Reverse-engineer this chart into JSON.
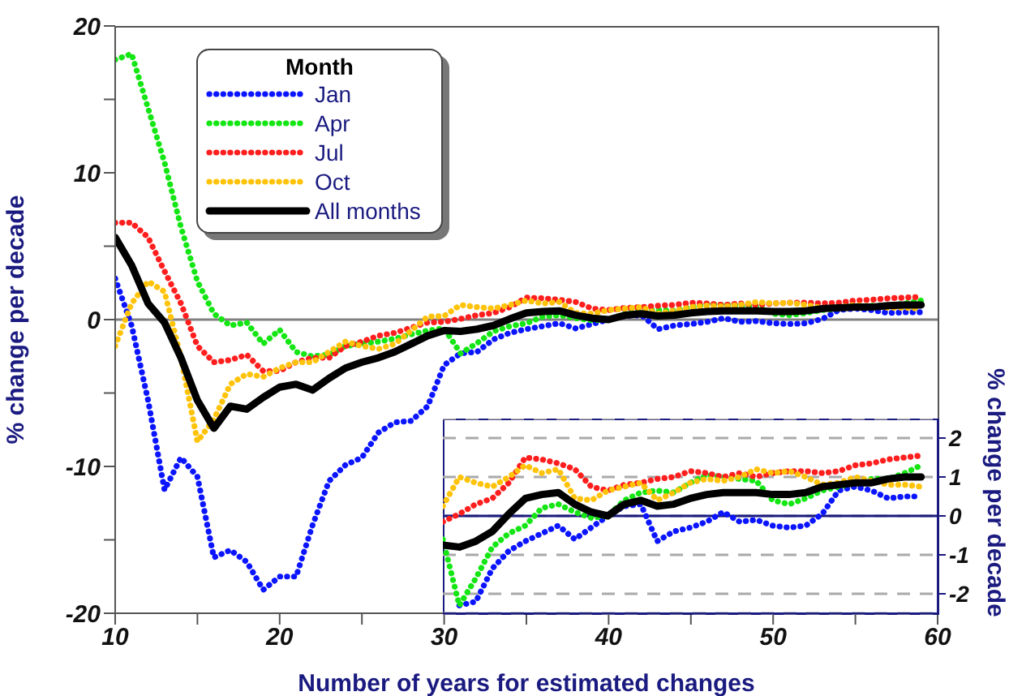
{
  "chart_data": [
    {
      "type": "line",
      "xlabel": "Number of years for estimated changes",
      "ylabel": "% change per decade",
      "legend": "top left",
      "legend_title": "Month",
      "grid": false,
      "xlim": [
        10,
        60
      ],
      "ylim": [
        -20,
        20
      ],
      "xticks": [
        10,
        {
          "value": 15,
          "label": null
        },
        20,
        {
          "value": 25,
          "label": null
        },
        30,
        {
          "value": 35,
          "label": null
        },
        40,
        {
          "value": 45,
          "label": null
        },
        50,
        {
          "value": 55,
          "label": null
        },
        60
      ],
      "yticks": [
        -20,
        {
          "value": -15,
          "label": null
        },
        -10,
        {
          "value": -5,
          "label": null
        },
        0,
        {
          "value": 5,
          "label": null
        },
        10,
        {
          "value": 15,
          "label": null
        },
        20
      ],
      "ref_lines": [
        {
          "axis": "y",
          "value": 0,
          "label": null,
          "color": "#808080",
          "line_style": "solid"
        }
      ],
      "x": [
        10,
        11,
        12,
        13,
        14,
        15,
        16,
        17,
        18,
        19,
        20,
        21,
        22,
        23,
        24,
        25,
        26,
        27,
        28,
        29,
        30,
        31,
        32,
        33,
        34,
        35,
        36,
        37,
        38,
        39,
        40,
        41,
        42,
        43,
        44,
        45,
        46,
        47,
        48,
        49,
        50,
        51,
        52,
        53,
        54,
        55,
        56,
        57,
        58,
        59
      ],
      "series": [
        {
          "name": "Jan",
          "color": "#0a14ff",
          "line_style": "dotted",
          "values": [
            2.8,
            -0.4,
            -5.5,
            -11.6,
            -9.4,
            -10.7,
            -16.2,
            -15.7,
            -16.5,
            -18.4,
            -17.5,
            -17.5,
            -14,
            -11,
            -9.9,
            -9.4,
            -7.7,
            -7,
            -6.9,
            -5.9,
            -3.1,
            -2.3,
            -2.2,
            -1.35,
            -0.9,
            -0.65,
            -0.45,
            -0.25,
            -0.6,
            -0.3,
            0,
            0.25,
            0.3,
            -0.65,
            -0.4,
            -0.3,
            -0.15,
            0.1,
            -0.15,
            -0.1,
            -0.25,
            -0.3,
            -0.25,
            0.05,
            0.65,
            0.75,
            0.65,
            0.45,
            0.5,
            0.5
          ]
        },
        {
          "name": "Apr",
          "color": "#14e614",
          "line_style": "dotted",
          "values": [
            17.7,
            18.1,
            14.4,
            10.7,
            6.3,
            2.6,
            0.4,
            -0.4,
            -0.2,
            -1.65,
            -0.7,
            -2.2,
            -2.5,
            -2.4,
            -1.8,
            -1.65,
            -1.5,
            -1.3,
            -1,
            -0.75,
            -0.6,
            -2.3,
            -1.6,
            -0.8,
            -0.45,
            -0.25,
            0.2,
            0.3,
            0.1,
            -0.05,
            0,
            0.4,
            0.6,
            0.65,
            0.6,
            0.85,
            1.05,
            1,
            0.95,
            0.9,
            0.4,
            0.3,
            0.45,
            0.65,
            0.75,
            0.85,
            0.95,
            0.95,
            1.1,
            1.3
          ]
        },
        {
          "name": "Jul",
          "color": "#ff1e1e",
          "line_style": "dotted",
          "values": [
            6.6,
            6.6,
            5.6,
            3.3,
            1.1,
            -1.8,
            -2.9,
            -2.75,
            -2.4,
            -3.5,
            -3.5,
            -2.9,
            -2.6,
            -2.6,
            -1.8,
            -1.5,
            -1.1,
            -0.9,
            -0.55,
            -0.2,
            -0.15,
            0.05,
            0.3,
            0.45,
            0.85,
            1.5,
            1.45,
            1.35,
            1.2,
            0.75,
            0.65,
            0.8,
            0.85,
            0.95,
            1,
            1.15,
            1.1,
            1,
            1.1,
            1,
            1.1,
            1.15,
            1.15,
            1.1,
            1.15,
            1.3,
            1.35,
            1.45,
            1.5,
            1.55
          ]
        },
        {
          "name": "Oct",
          "color": "#ffc30a",
          "line_style": "dotted",
          "values": [
            -1.8,
            1.1,
            2.6,
            1.9,
            -2.6,
            -8.3,
            -6.8,
            -4.4,
            -3.7,
            -3.9,
            -3.3,
            -2.9,
            -2.9,
            -2.2,
            -1.5,
            -1.8,
            -2,
            -1.65,
            -0.75,
            0.2,
            0.25,
            1,
            0.85,
            0.75,
            1,
            1.3,
            1.1,
            1.2,
            0.45,
            0.4,
            0.65,
            0.75,
            0.85,
            0.4,
            0.6,
            0.85,
            0.95,
            0.9,
            1,
            1.2,
            1.1,
            1.15,
            1,
            0.8,
            0.85,
            1,
            0.9,
            0.8,
            0.8,
            0.75
          ]
        },
        {
          "name": "All months",
          "color": "#000000",
          "line_style": "solid",
          "values": [
            5.6,
            3.7,
            1.1,
            -0.2,
            -2.6,
            -5.5,
            -7.4,
            -5.9,
            -6.1,
            -5.3,
            -4.6,
            -4.4,
            -4.8,
            -4,
            -3.3,
            -2.9,
            -2.6,
            -2.2,
            -1.65,
            -1.1,
            -0.75,
            -0.8,
            -0.65,
            -0.4,
            0.05,
            0.45,
            0.55,
            0.6,
            0.3,
            0.1,
            0,
            0.3,
            0.4,
            0.25,
            0.3,
            0.45,
            0.55,
            0.6,
            0.6,
            0.6,
            0.55,
            0.55,
            0.6,
            0.75,
            0.8,
            0.85,
            0.85,
            0.95,
            1,
            1
          ]
        }
      ]
    },
    {
      "type": "line",
      "ylabel": "% change per decade",
      "grid": "y",
      "tick_labels": "y",
      "ylim": [
        -2.5,
        2.5
      ],
      "yticks": [
        -2,
        -1,
        0,
        1,
        2
      ],
      "ref_lines": [
        {
          "axis": "y",
          "value": 0,
          "label": null,
          "color": "#1a1a80",
          "line_style": "solid"
        }
      ],
      "categories": [
        null,
        null,
        null,
        null,
        null,
        null,
        null,
        null,
        null,
        null,
        null,
        null,
        null,
        null,
        null,
        null,
        null,
        null,
        null,
        null,
        null,
        null,
        null,
        null,
        null,
        null,
        null,
        null,
        null,
        null
      ],
      "series": [
        {
          "color": "#0a14ff",
          "line_style": "dotted",
          "values": [
            null,
            -2.3,
            -2.2,
            -1.35,
            -0.9,
            -0.65,
            -0.45,
            -0.25,
            -0.6,
            -0.3,
            0,
            0.25,
            0.3,
            -0.65,
            -0.4,
            -0.3,
            -0.15,
            0.1,
            -0.15,
            -0.1,
            -0.25,
            -0.3,
            -0.25,
            0.05,
            0.65,
            0.75,
            0.65,
            0.45,
            0.5,
            0.5
          ]
        },
        {
          "color": "#14e614",
          "line_style": "dotted",
          "values": [
            -0.6,
            -2.3,
            -1.6,
            -0.8,
            -0.45,
            -0.25,
            0.2,
            0.3,
            0.1,
            -0.05,
            0,
            0.4,
            0.6,
            0.65,
            0.6,
            0.85,
            1.05,
            1,
            0.95,
            0.9,
            0.4,
            0.3,
            0.45,
            0.65,
            0.75,
            0.85,
            0.95,
            0.95,
            1.1,
            1.3
          ]
        },
        {
          "color": "#ff1e1e",
          "line_style": "dotted",
          "values": [
            -0.15,
            0.05,
            0.3,
            0.45,
            0.85,
            1.5,
            1.45,
            1.35,
            1.2,
            0.75,
            0.65,
            0.8,
            0.85,
            0.95,
            1,
            1.15,
            1.1,
            1,
            1.1,
            1,
            1.1,
            1.15,
            1.15,
            1.1,
            1.15,
            1.3,
            1.35,
            1.45,
            1.5,
            1.55
          ]
        },
        {
          "color": "#ffc30a",
          "line_style": "dotted",
          "values": [
            0.25,
            1,
            0.85,
            0.75,
            1,
            1.3,
            1.1,
            1.2,
            0.45,
            0.4,
            0.65,
            0.75,
            0.85,
            0.4,
            0.6,
            0.85,
            0.95,
            0.9,
            1,
            1.2,
            1.1,
            1.15,
            1,
            0.8,
            0.85,
            1,
            0.9,
            0.8,
            0.8,
            0.75
          ]
        },
        {
          "color": "#000000",
          "line_style": "solid",
          "values": [
            -0.75,
            -0.8,
            -0.65,
            -0.4,
            0.05,
            0.45,
            0.55,
            0.6,
            0.3,
            0.1,
            0,
            0.3,
            0.4,
            0.25,
            0.3,
            0.45,
            0.55,
            0.6,
            0.6,
            0.6,
            0.55,
            0.55,
            0.6,
            0.75,
            0.8,
            0.85,
            0.85,
            0.95,
            1,
            1
          ]
        }
      ]
    }
  ]
}
